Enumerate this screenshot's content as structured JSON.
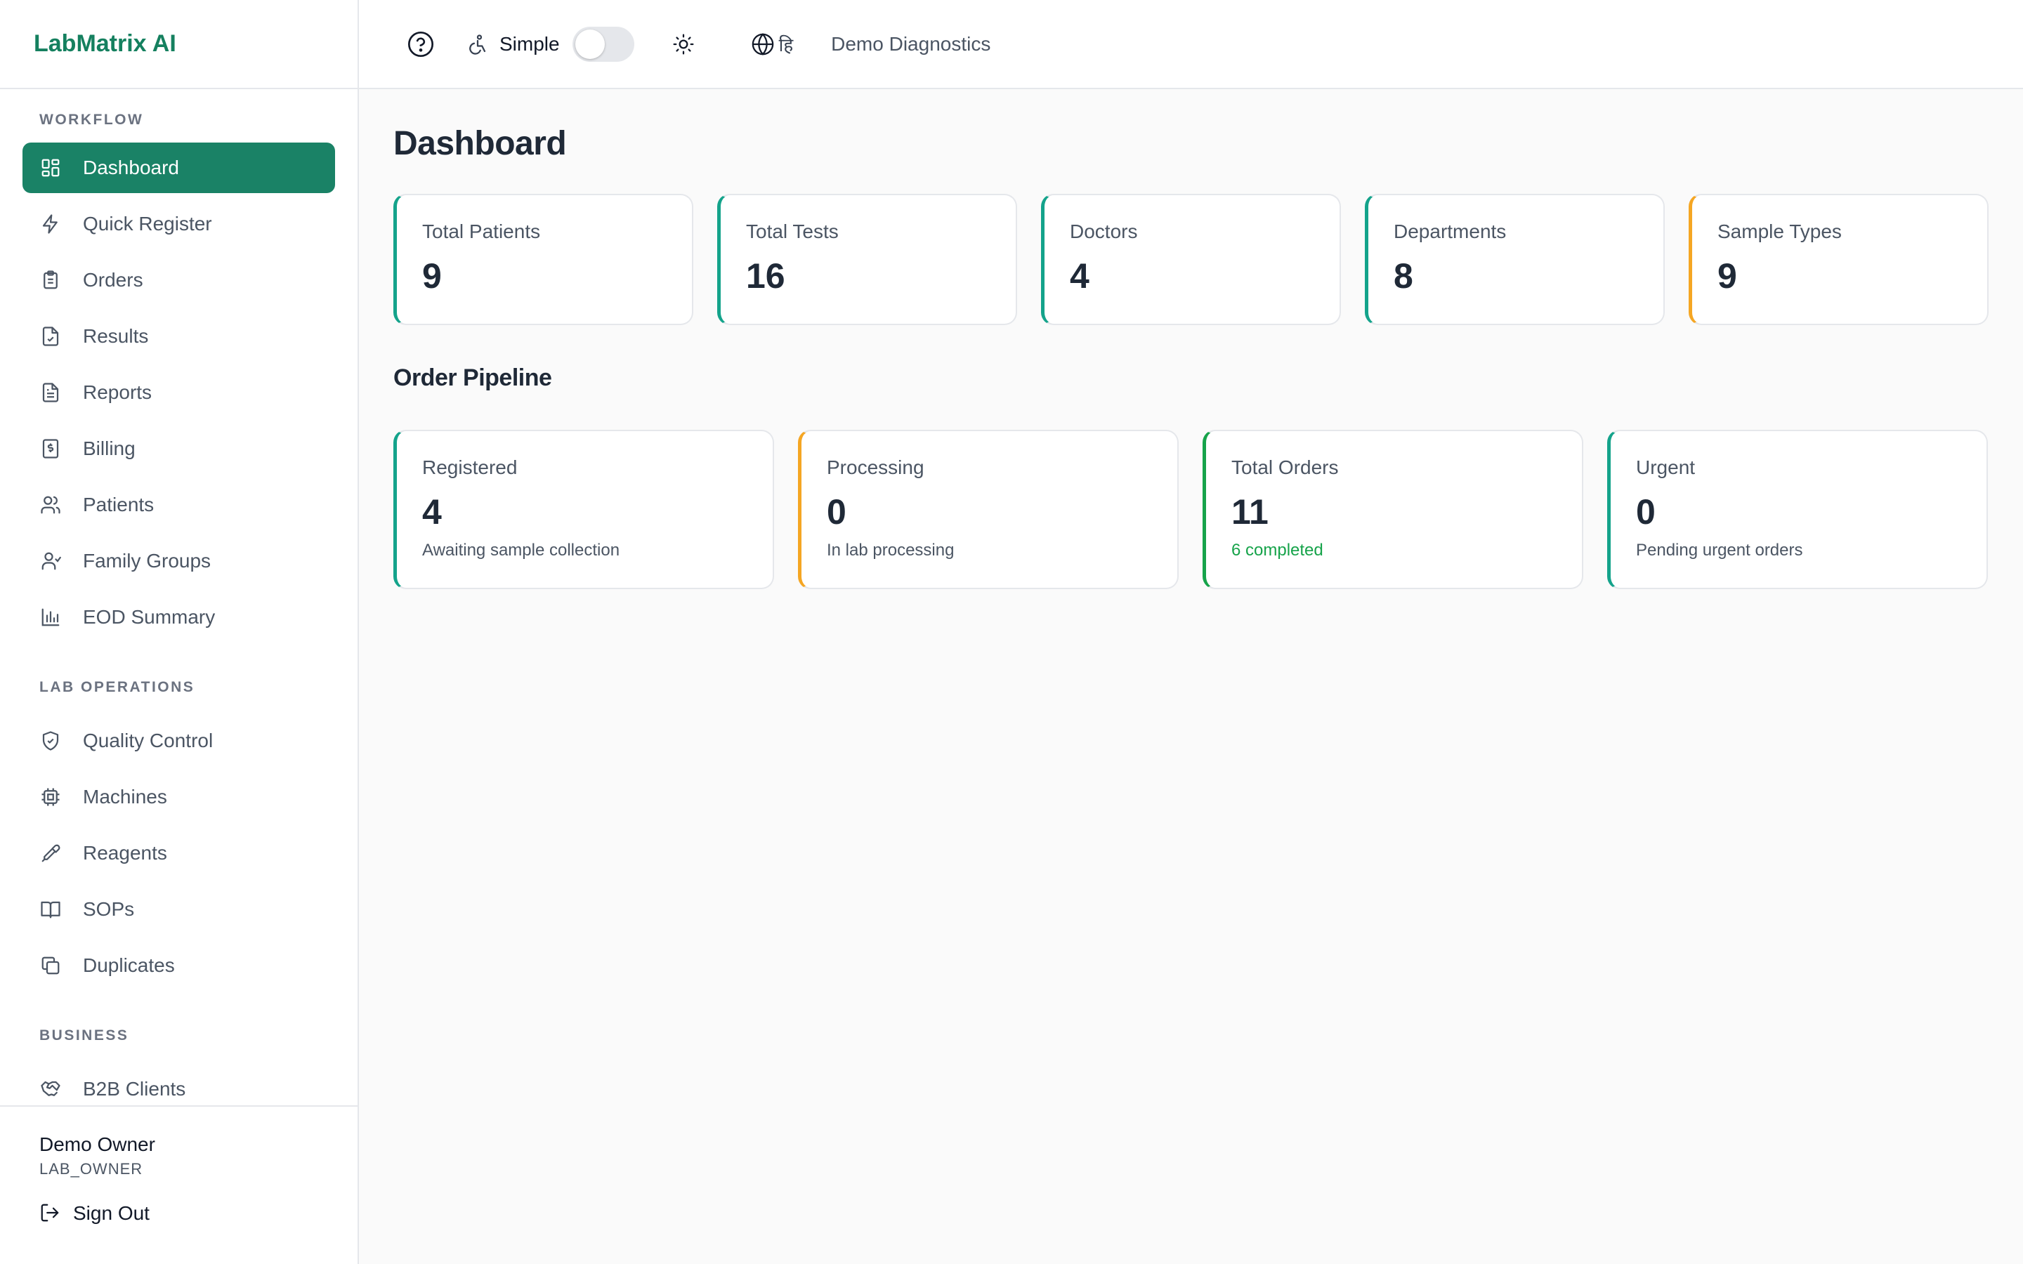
{
  "app": {
    "name": "LabMatrix AI"
  },
  "topbar": {
    "mode_label": "Simple",
    "mode_enabled": false,
    "language_glyph": "हि",
    "org_name": "Demo Diagnostics"
  },
  "sidebar": {
    "sections": [
      {
        "label": "WORKFLOW"
      },
      {
        "label": "LAB OPERATIONS"
      },
      {
        "label": "BUSINESS"
      }
    ],
    "workflow": [
      {
        "label": "Dashboard",
        "icon": "dashboard-icon",
        "active": true
      },
      {
        "label": "Quick Register",
        "icon": "lightning-icon"
      },
      {
        "label": "Orders",
        "icon": "clipboard-icon"
      },
      {
        "label": "Results",
        "icon": "file-check-icon"
      },
      {
        "label": "Reports",
        "icon": "file-text-icon"
      },
      {
        "label": "Billing",
        "icon": "receipt-icon"
      },
      {
        "label": "Patients",
        "icon": "users-icon"
      },
      {
        "label": "Family Groups",
        "icon": "user-group-icon"
      },
      {
        "label": "EOD Summary",
        "icon": "bar-chart-icon"
      }
    ],
    "lab_operations": [
      {
        "label": "Quality Control",
        "icon": "shield-check-icon"
      },
      {
        "label": "Machines",
        "icon": "cpu-icon"
      },
      {
        "label": "Reagents",
        "icon": "pipette-icon"
      },
      {
        "label": "SOPs",
        "icon": "book-icon"
      },
      {
        "label": "Duplicates",
        "icon": "copy-icon"
      }
    ],
    "business": [
      {
        "label": "B2B Clients",
        "icon": "handshake-icon"
      }
    ],
    "user": {
      "name": "Demo Owner",
      "role": "LAB_OWNER"
    },
    "sign_out_label": "Sign Out"
  },
  "main": {
    "title": "Dashboard",
    "stats": [
      {
        "label": "Total Patients",
        "value": "9",
        "accent": "#14a38b"
      },
      {
        "label": "Total Tests",
        "value": "16",
        "accent": "#14a38b"
      },
      {
        "label": "Doctors",
        "value": "4",
        "accent": "#14a38b"
      },
      {
        "label": "Departments",
        "value": "8",
        "accent": "#14a38b"
      },
      {
        "label": "Sample Types",
        "value": "9",
        "accent": "#f5a623"
      }
    ],
    "pipeline_title": "Order Pipeline",
    "pipeline": [
      {
        "label": "Registered",
        "value": "4",
        "sub": "Awaiting sample collection",
        "accent": "#14a38b"
      },
      {
        "label": "Processing",
        "value": "0",
        "sub": "In lab processing",
        "accent": "#f5a623"
      },
      {
        "label": "Total Orders",
        "value": "11",
        "sub": "6 completed",
        "accent": "#16a34a",
        "sub_color": "#16a34a"
      },
      {
        "label": "Urgent",
        "value": "0",
        "sub": "Pending urgent orders",
        "accent": "#14a38b"
      }
    ]
  },
  "colors": {
    "brand": "#15805f",
    "active_nav_bg": "#1a8266",
    "teal_accent": "#14a38b",
    "amber_accent": "#f5a623",
    "green_accent": "#16a34a"
  }
}
